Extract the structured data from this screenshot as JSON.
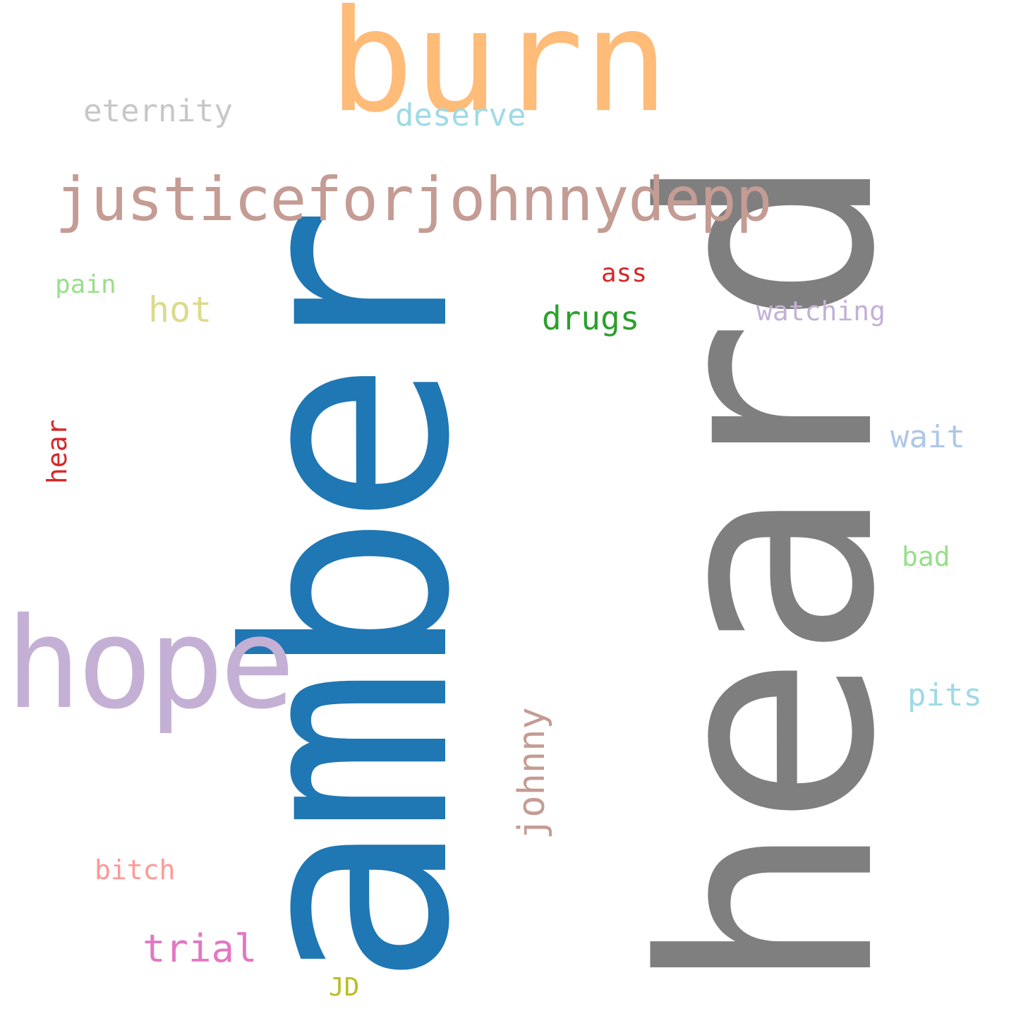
{
  "words": {
    "heard": {
      "text": "heard",
      "color": "#7f7f7f"
    },
    "amber": {
      "text": "amber",
      "color": "#1f77b4"
    },
    "burn": {
      "text": "burn",
      "color": "#ffbb78"
    },
    "hope": {
      "text": "hope",
      "color": "#c5b0d5"
    },
    "justiceforjohnnydepp": {
      "text": "justiceforjohnnydepp",
      "color": "#c49c94"
    },
    "eternity": {
      "text": "eternity",
      "color": "#c7c7c7"
    },
    "deserve": {
      "text": "deserve",
      "color": "#9edae5"
    },
    "johnny": {
      "text": "johnny",
      "color": "#c49c94"
    },
    "trial": {
      "text": "trial",
      "color": "#e377c2"
    },
    "hot": {
      "text": "hot",
      "color": "#dbdb8d"
    },
    "drugs": {
      "text": "drugs",
      "color": "#2ca02c"
    },
    "watching": {
      "text": "watching",
      "color": "#c5b0d5"
    },
    "wait": {
      "text": "wait",
      "color": "#aec7e8"
    },
    "pits": {
      "text": "pits",
      "color": "#9edae5"
    },
    "pain": {
      "text": "pain",
      "color": "#98df8a"
    },
    "ass": {
      "text": "ass",
      "color": "#d62728"
    },
    "hear": {
      "text": "hear",
      "color": "#d62728"
    },
    "bad": {
      "text": "bad",
      "color": "#98df8a"
    },
    "bitch": {
      "text": "bitch",
      "color": "#ff9896"
    },
    "jd": {
      "text": "JD",
      "color": "#bcbd22"
    }
  }
}
